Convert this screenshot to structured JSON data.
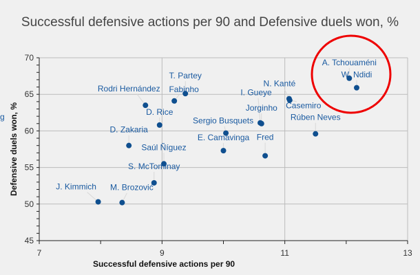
{
  "chart_data": {
    "type": "scatter",
    "title": "Successful defensive actions per 90 and Defensive duels won, %",
    "xlabel": "Successful defensive actions per 90",
    "ylabel": "Defensive duels won, %",
    "xlim": [
      7,
      13
    ],
    "ylim": [
      45,
      70
    ],
    "x_ticks": [
      7,
      9,
      11,
      13
    ],
    "y_ticks": [
      45,
      50,
      55,
      60,
      65,
      70
    ],
    "grid": true,
    "point_color": "#0f4f8f",
    "label_color": "#1a5aa0",
    "highlight_color": "#ee0000",
    "highlight": [
      "A. Tchouaméni",
      "W. Ndidi"
    ],
    "truncated_label": "g",
    "points": [
      {
        "name": "A. Tchouaméni",
        "x": 12.05,
        "y": 67.2
      },
      {
        "name": "W. Ndidi",
        "x": 12.17,
        "y": 65.9
      },
      {
        "name": "N. Kanté",
        "x": 11.07,
        "y": 64.4
      },
      {
        "name": "Casemiro",
        "x": 11.08,
        "y": 64.2
      },
      {
        "name": "Rúben Neves",
        "x": 11.5,
        "y": 59.6
      },
      {
        "name": "I. Gueye",
        "x": 10.6,
        "y": 61.1
      },
      {
        "name": "Jorginho",
        "x": 10.62,
        "y": 61.0
      },
      {
        "name": "Sergio Busquets",
        "x": 10.04,
        "y": 59.7
      },
      {
        "name": "E. Camavinga",
        "x": 10.0,
        "y": 57.3
      },
      {
        "name": "Fred",
        "x": 10.68,
        "y": 56.6
      },
      {
        "name": "T. Partey",
        "x": 9.38,
        "y": 65.1
      },
      {
        "name": "Fabinho",
        "x": 9.2,
        "y": 64.1
      },
      {
        "name": "Rodri Hernández",
        "x": 8.73,
        "y": 63.5
      },
      {
        "name": "D. Rice",
        "x": 8.96,
        "y": 60.8
      },
      {
        "name": "D. Zakaria",
        "x": 8.46,
        "y": 58.0
      },
      {
        "name": "Saúl Ñíguez",
        "x": 9.03,
        "y": 55.5
      },
      {
        "name": "S. McTominay",
        "x": 8.87,
        "y": 52.9
      },
      {
        "name": "J. Kimmich",
        "x": 7.96,
        "y": 50.3
      },
      {
        "name": "M. Brozović",
        "x": 8.35,
        "y": 50.2
      }
    ]
  }
}
